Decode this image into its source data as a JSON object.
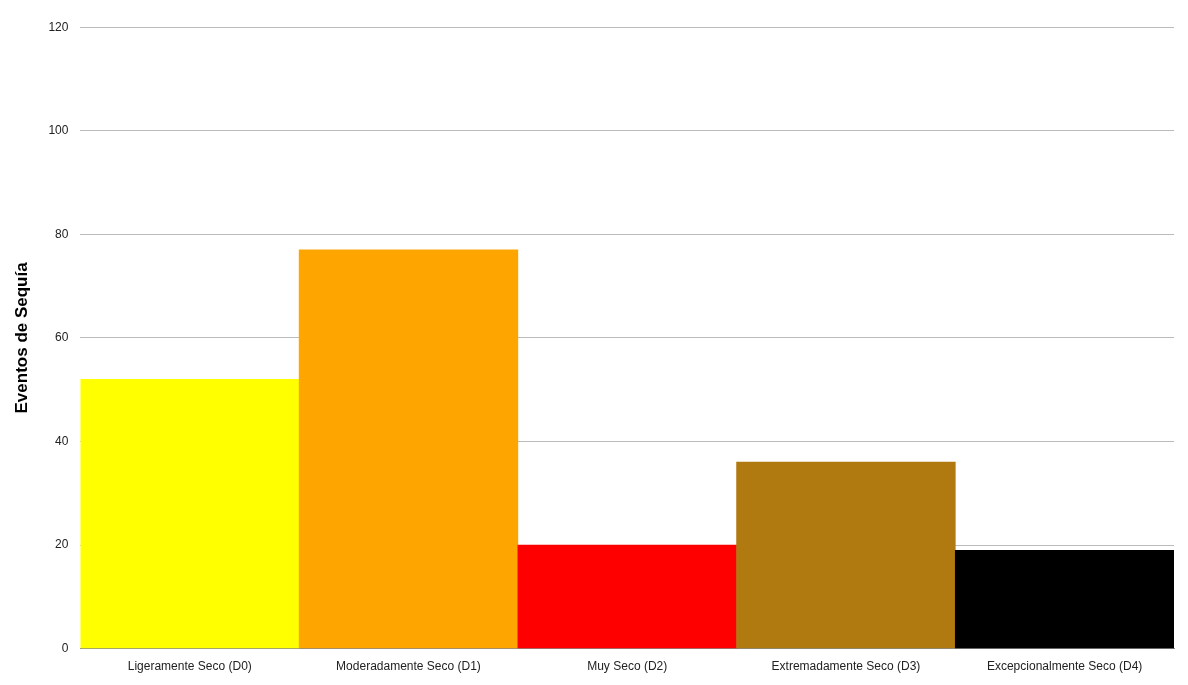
{
  "chart_data": {
    "type": "bar",
    "ylabel": "Eventos de Sequía",
    "categories": [
      "Ligeramente Seco (D0)",
      "Moderadamente Seco (D1)",
      "Muy Seco (D2)",
      "Extremadamente Seco (D3)",
      "Excepcionalmente Seco (D4)"
    ],
    "values": [
      52,
      77,
      20,
      36,
      19
    ],
    "colors": [
      "#ffff00",
      "#ffa500",
      "#ff0000",
      "#b07a10",
      "#000000"
    ],
    "ylim": [
      0,
      120
    ],
    "yticks": [
      0,
      20,
      40,
      60,
      80,
      100,
      120
    ],
    "grid": "y",
    "legend": false
  }
}
